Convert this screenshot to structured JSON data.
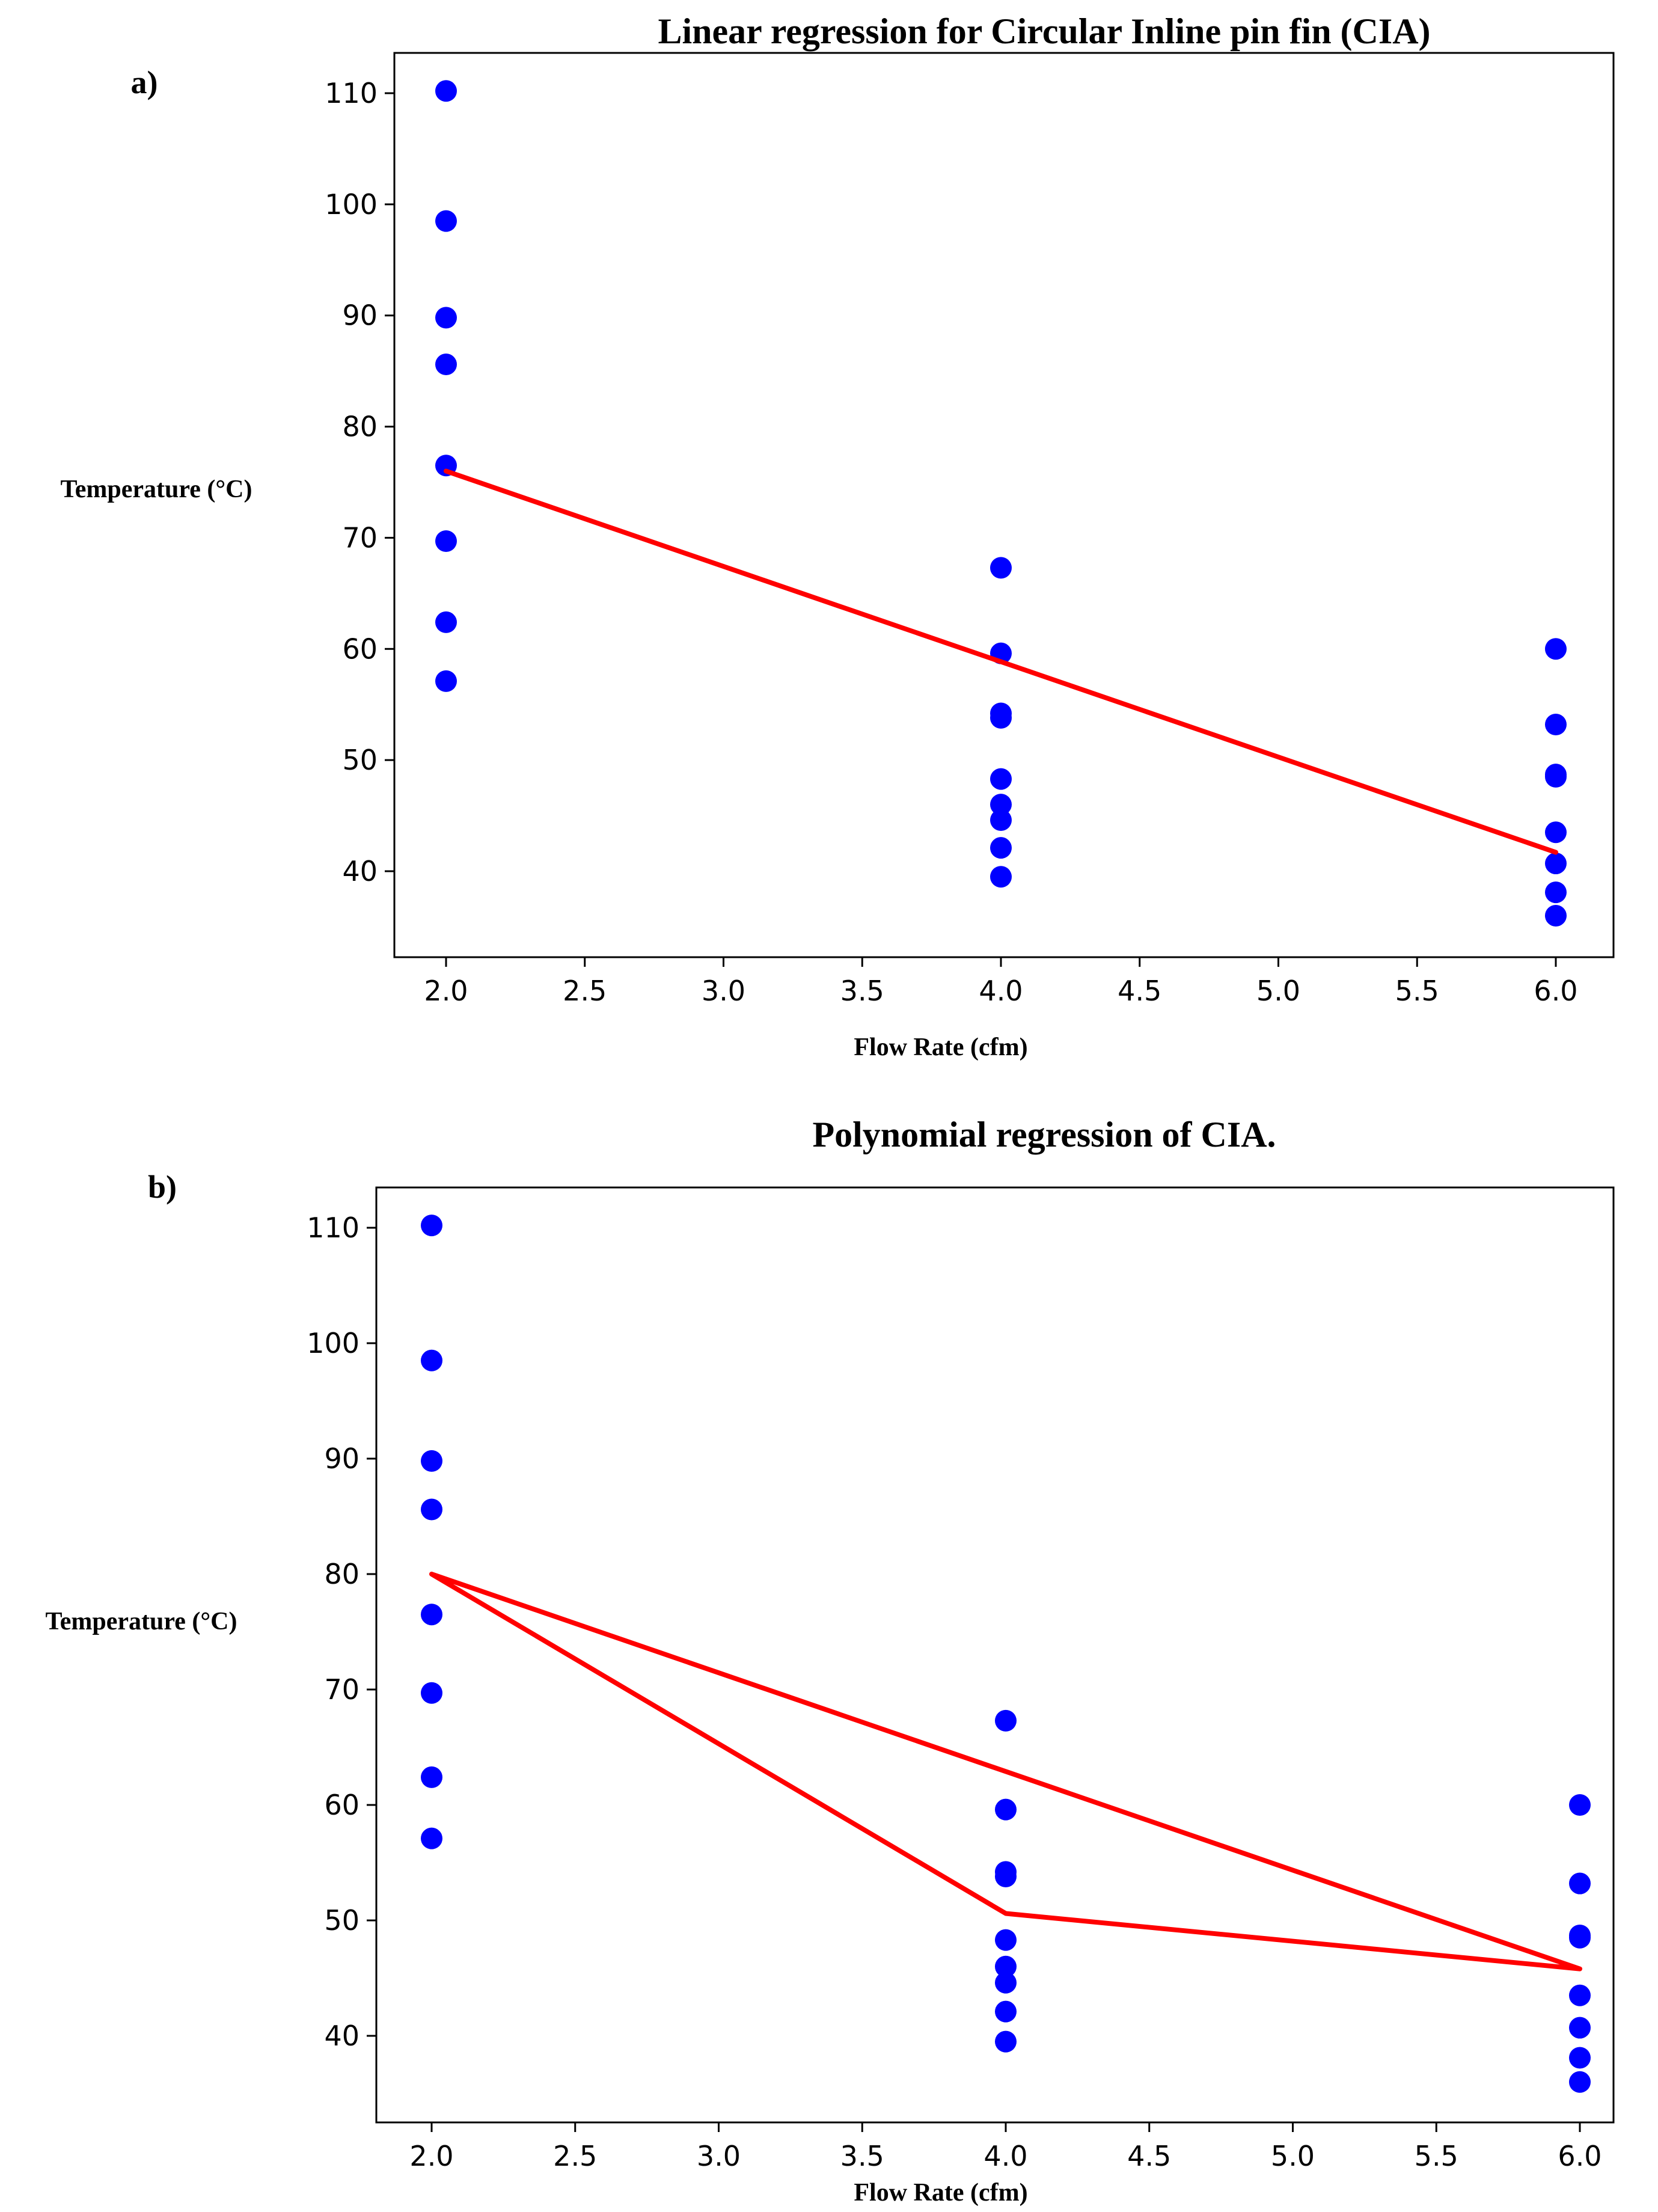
{
  "chart_data": [
    {
      "panel_label": "a)",
      "type": "scatter",
      "title": "Linear regression for Circular Inline pin fin (CIA)",
      "xlabel": "Flow Rate (cfm)",
      "ylabel": "Temperature (°C)",
      "xlim": [
        1.8,
        6.2
      ],
      "ylim": [
        33,
        115
      ],
      "xticks": [
        "2.0",
        "2.5",
        "3.0",
        "3.5",
        "4.0",
        "4.5",
        "5.0",
        "5.5",
        "6.0"
      ],
      "yticks": [
        "40",
        "50",
        "60",
        "70",
        "80",
        "90",
        "100",
        "110"
      ],
      "grid": false,
      "points": {
        "color": "#0000ff",
        "x": [
          2,
          2,
          2,
          2,
          2,
          2,
          2,
          2,
          4,
          4,
          4,
          4,
          4,
          4,
          4,
          4,
          4,
          6,
          6,
          6,
          6,
          6,
          6,
          6,
          6
        ],
        "y": [
          110.2,
          98.5,
          89.8,
          85.6,
          76.5,
          69.7,
          62.4,
          57.1,
          67.3,
          59.6,
          54.2,
          53.8,
          48.3,
          46.0,
          44.6,
          42.1,
          39.5,
          60.0,
          53.2,
          48.7,
          48.5,
          43.5,
          40.7,
          38.1,
          36.0
        ]
      },
      "lines": [
        {
          "color": "#ff0000",
          "x": [
            2,
            6
          ],
          "y": [
            76.0,
            41.7
          ]
        }
      ]
    },
    {
      "panel_label": "b)",
      "type": "scatter",
      "title": "Polynomial regression of CIA.",
      "xlabel": "Flow Rate (cfm)",
      "ylabel": "Temperature (°C)",
      "xlim": [
        1.8,
        6.2
      ],
      "ylim": [
        33,
        115
      ],
      "xticks": [
        "2.0",
        "2.5",
        "3.0",
        "3.5",
        "4.0",
        "4.5",
        "5.0",
        "5.5",
        "6.0"
      ],
      "yticks": [
        "40",
        "50",
        "60",
        "70",
        "80",
        "90",
        "100",
        "110"
      ],
      "grid": false,
      "points": {
        "color": "#0000ff",
        "x": [
          2,
          2,
          2,
          2,
          2,
          2,
          2,
          2,
          4,
          4,
          4,
          4,
          4,
          4,
          4,
          4,
          4,
          6,
          6,
          6,
          6,
          6,
          6,
          6,
          6
        ],
        "y": [
          110.2,
          98.5,
          89.8,
          85.6,
          76.5,
          69.7,
          62.4,
          57.1,
          67.3,
          59.6,
          54.2,
          53.8,
          48.3,
          46.0,
          44.6,
          42.1,
          39.5,
          60.0,
          53.2,
          48.7,
          48.5,
          43.5,
          40.7,
          38.1,
          36.0
        ]
      },
      "lines": [
        {
          "color": "#ff0000",
          "x": [
            2,
            4,
            6,
            2
          ],
          "y": [
            80.0,
            50.6,
            45.8,
            80.0
          ]
        }
      ]
    }
  ]
}
